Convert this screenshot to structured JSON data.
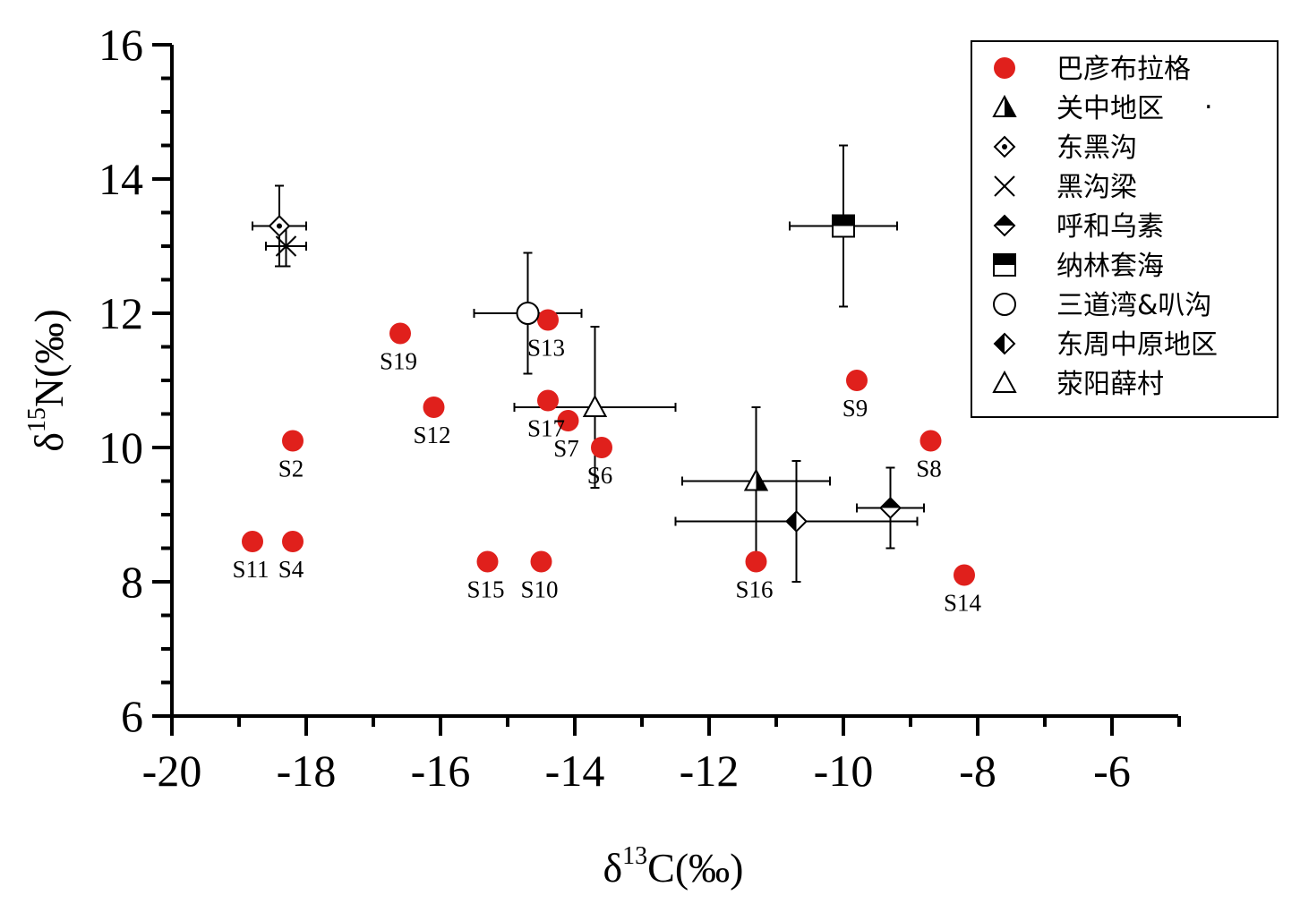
{
  "chart_data": {
    "type": "scatter",
    "title": "",
    "xlabel": {
      "prefix": "δ",
      "sup": "13",
      "main": "C(‰)"
    },
    "ylabel": {
      "prefix": "δ",
      "sup": "15",
      "main": "N(‰)"
    },
    "xlim": [
      -20,
      -5
    ],
    "ylim": [
      6,
      16
    ],
    "x_ticks": [
      -20,
      -18,
      -16,
      -14,
      -12,
      -10,
      -8,
      -6
    ],
    "x_tick_labels": [
      "-20",
      "-18",
      "-16",
      "-14",
      "-12",
      "-10",
      "-8",
      "-6"
    ],
    "y_ticks": [
      6,
      8,
      10,
      12,
      14,
      16
    ],
    "y_tick_labels": [
      "6",
      "8",
      "10",
      "12",
      "14",
      "16"
    ],
    "grid": false,
    "legend_position": "top-right",
    "colors": {
      "bayanbulage": "#e0201c"
    },
    "legend": [
      {
        "label": "巴彦布拉格",
        "marker": "red-circle"
      },
      {
        "label": "关中地区",
        "marker": "half-triangle"
      },
      {
        "label": "东黑沟",
        "marker": "dot-diamond"
      },
      {
        "label": "黑沟梁",
        "marker": "x-cross"
      },
      {
        "label": "呼和乌素",
        "marker": "half-diamond-top"
      },
      {
        "label": "纳林套海",
        "marker": "half-square"
      },
      {
        "label": "三道湾&叭沟",
        "marker": "open-circle"
      },
      {
        "label": "东周中原地区",
        "marker": "half-diamond-left"
      },
      {
        "label": "荥阳薛村",
        "marker": "open-triangle"
      }
    ],
    "legend_dot": ".",
    "series": [
      {
        "name": "巴彦布拉格",
        "marker": "red-circle",
        "points": [
          {
            "label": "S2",
            "x": -18.2,
            "y": 10.1
          },
          {
            "label": "S4",
            "x": -18.2,
            "y": 8.6
          },
          {
            "label": "S6",
            "x": -13.6,
            "y": 10.0
          },
          {
            "label": "S7",
            "x": -14.1,
            "y": 10.4
          },
          {
            "label": "S8",
            "x": -8.7,
            "y": 10.1
          },
          {
            "label": "S9",
            "x": -9.8,
            "y": 11.0
          },
          {
            "label": "S10",
            "x": -14.5,
            "y": 8.3
          },
          {
            "label": "S11",
            "x": -18.8,
            "y": 8.6
          },
          {
            "label": "S12",
            "x": -16.1,
            "y": 10.6
          },
          {
            "label": "S13",
            "x": -14.4,
            "y": 11.9
          },
          {
            "label": "S14",
            "x": -8.2,
            "y": 8.1
          },
          {
            "label": "S15",
            "x": -15.3,
            "y": 8.3
          },
          {
            "label": "S16",
            "x": -11.3,
            "y": 8.3
          },
          {
            "label": "S17",
            "x": -14.4,
            "y": 10.7
          },
          {
            "label": "S19",
            "x": -16.6,
            "y": 11.7
          }
        ]
      },
      {
        "name": "关中地区",
        "marker": "half-triangle",
        "x": -11.3,
        "y": 9.5,
        "xerr": 1.1,
        "yerr": 1.1
      },
      {
        "name": "东黑沟",
        "marker": "dot-diamond",
        "x": -18.4,
        "y": 13.3,
        "xerr": 0.4,
        "yerr": 0.6
      },
      {
        "name": "黑沟梁",
        "marker": "x-cross",
        "x": -18.3,
        "y": 13.0,
        "xerr": 0.3,
        "yerr": 0.3
      },
      {
        "name": "呼和乌素",
        "marker": "half-diamond-top",
        "x": -9.3,
        "y": 9.1,
        "xerr": 0.5,
        "yerr": 0.6
      },
      {
        "name": "纳林套海",
        "marker": "half-square",
        "x": -10.0,
        "y": 13.3,
        "xerr": 0.8,
        "yerr": 1.2
      },
      {
        "name": "三道湾&叭沟",
        "marker": "open-circle",
        "x": -14.7,
        "y": 12.0,
        "xerr": 0.8,
        "yerr": 0.9
      },
      {
        "name": "东周中原地区",
        "marker": "half-diamond-left",
        "x": -10.7,
        "y": 8.9,
        "xerr": 1.8,
        "yerr": 0.9
      },
      {
        "name": "荥阳薛村",
        "marker": "open-triangle",
        "x": -13.7,
        "y": 10.6,
        "xerr": 1.2,
        "yerr": 1.2
      }
    ]
  }
}
